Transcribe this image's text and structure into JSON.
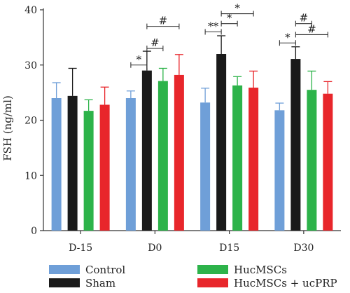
{
  "chart_data": {
    "type": "bar",
    "title": "",
    "xlabel": "",
    "ylabel": "FSH (ng/ml)",
    "ylim": [
      0,
      40
    ],
    "yticks": [
      0,
      10,
      20,
      30,
      40
    ],
    "grid": false,
    "legend_position": "bottom",
    "categories": [
      "D-15",
      "D0",
      "D15",
      "D30"
    ],
    "series": [
      {
        "name": "Control",
        "color": "#6f9fd8",
        "values": [
          24.0,
          24.0,
          23.2,
          21.8
        ],
        "errors": [
          2.8,
          1.3,
          2.6,
          1.3
        ]
      },
      {
        "name": "Sham",
        "color": "#1a1a1a",
        "values": [
          24.4,
          29.0,
          32.0,
          31.1
        ],
        "errors": [
          5.0,
          3.5,
          3.3,
          2.2
        ]
      },
      {
        "name": "HucMSCs",
        "color": "#2db34a",
        "values": [
          21.7,
          27.1,
          26.3,
          25.5
        ],
        "errors": [
          2.0,
          2.3,
          1.6,
          3.4
        ]
      },
      {
        "name": "HucMSCs + ucPRP",
        "color": "#e8262b",
        "values": [
          22.8,
          28.2,
          25.9,
          24.8
        ],
        "errors": [
          3.2,
          3.7,
          3.0,
          2.2
        ]
      }
    ],
    "annotations": [
      {
        "category": 1,
        "from": 0,
        "to": 1,
        "level": 30.0,
        "label": "*"
      },
      {
        "category": 1,
        "from": 1,
        "to": 2,
        "level": 33.0,
        "label": "#"
      },
      {
        "category": 1,
        "from": 1,
        "to": 3,
        "level": 37.0,
        "label": "#"
      },
      {
        "category": 2,
        "from": 0,
        "to": 1,
        "level": 36.0,
        "label": "**"
      },
      {
        "category": 2,
        "from": 1,
        "to": 2,
        "level": 37.5,
        "label": "*"
      },
      {
        "category": 2,
        "from": 1,
        "to": 3,
        "level": 39.3,
        "label": "*"
      },
      {
        "category": 3,
        "from": 0,
        "to": 1,
        "level": 34.0,
        "label": "*"
      },
      {
        "category": 3,
        "from": 1,
        "to": 2,
        "level": 37.5,
        "label": "#"
      },
      {
        "category": 3,
        "from": 1,
        "to": 3,
        "level": 35.5,
        "label": "#"
      }
    ]
  }
}
